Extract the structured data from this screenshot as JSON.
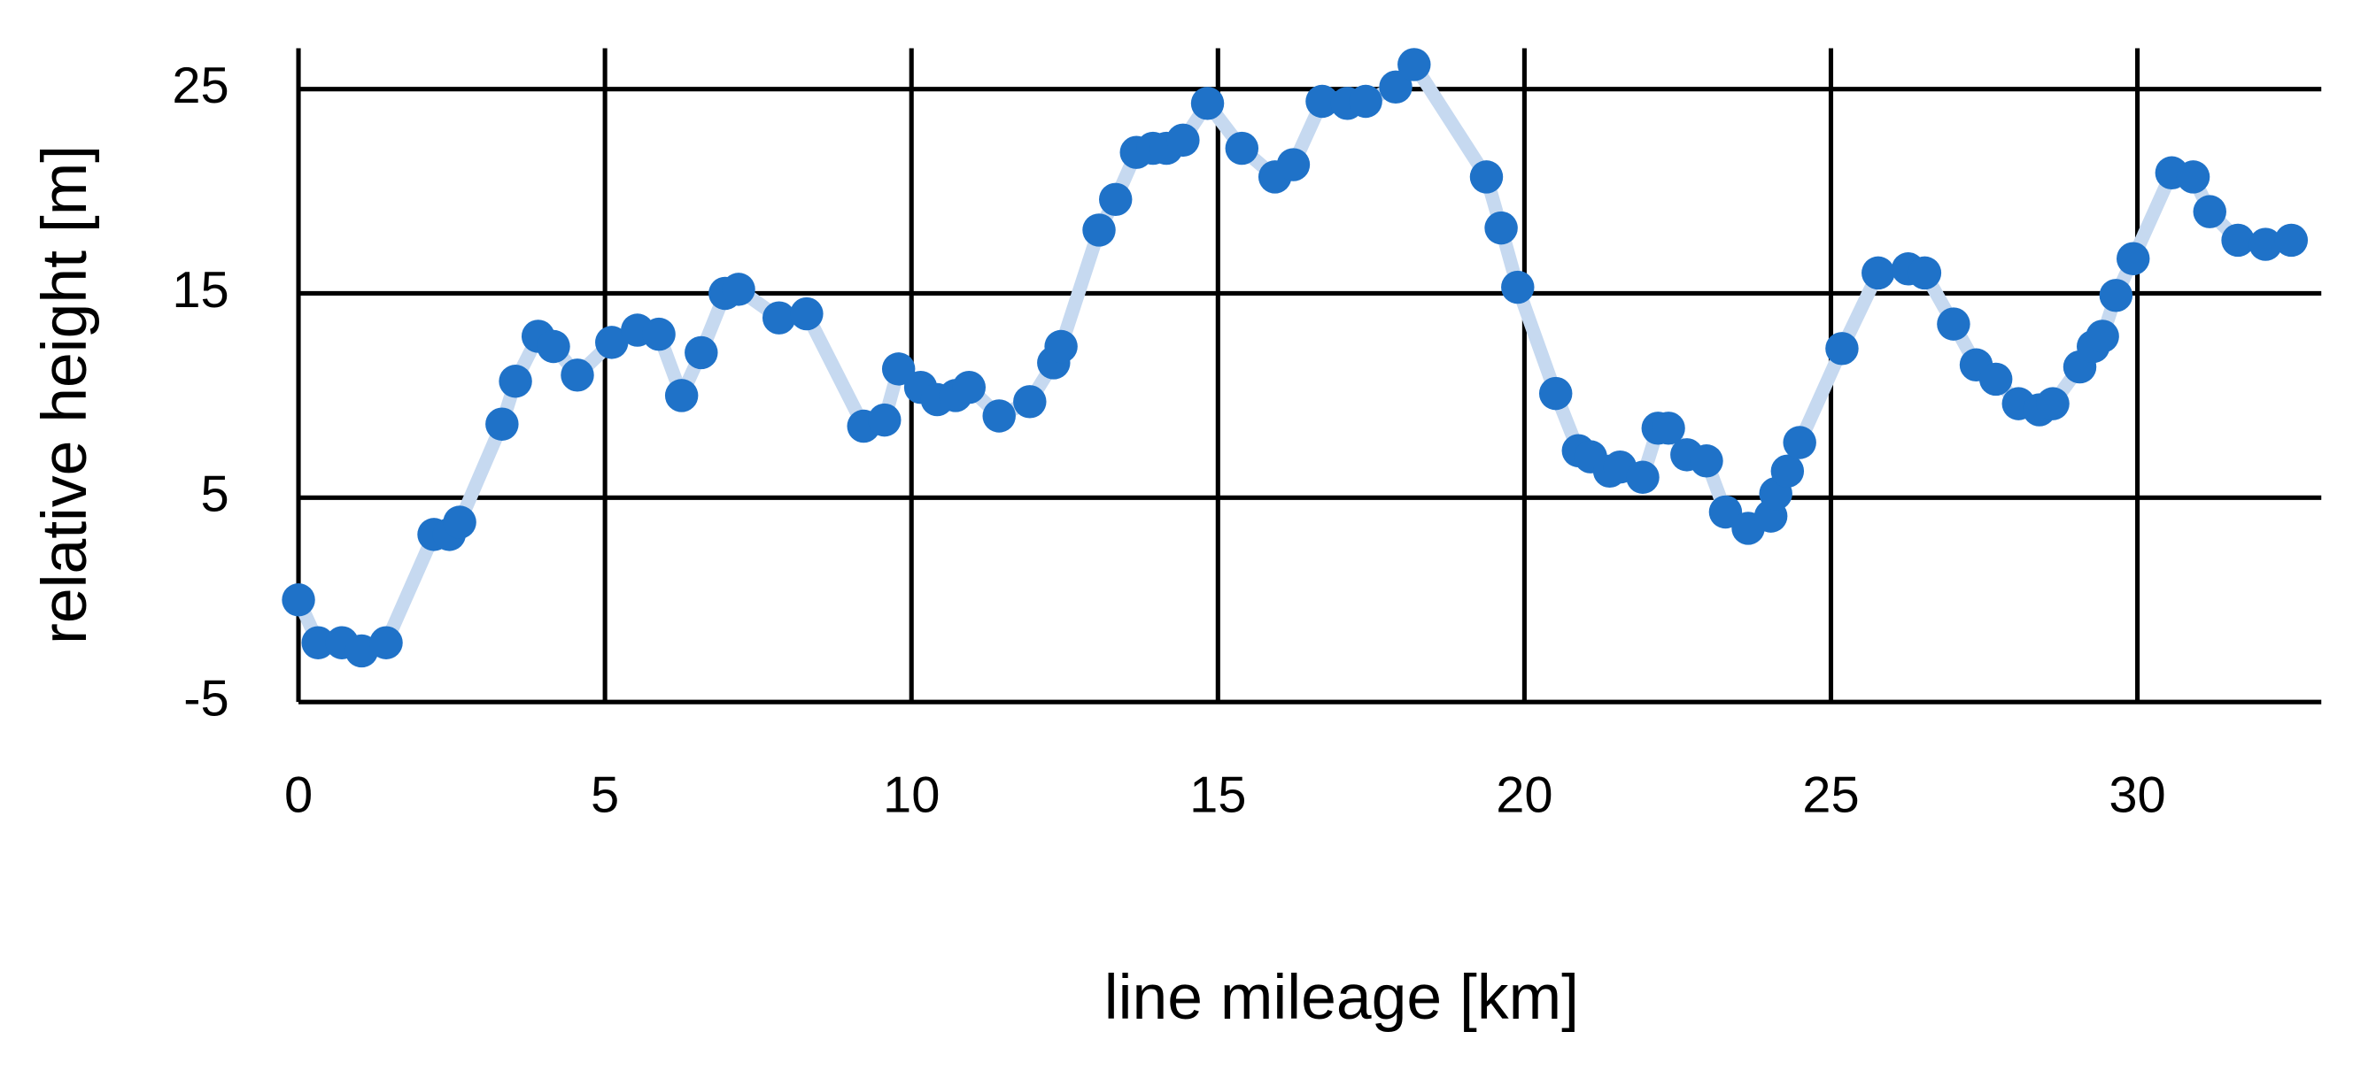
{
  "chart_data": {
    "type": "line",
    "x_label": "line mileage [km]",
    "y_label": "relative height  [m]",
    "x": [
      0,
      0.32,
      0.71,
      1.03,
      1.43,
      2.21,
      2.46,
      2.63,
      3.32,
      3.54,
      3.91,
      4.16,
      4.55,
      5.11,
      5.53,
      5.88,
      6.25,
      6.57,
      6.96,
      7.18,
      7.84,
      8.29,
      9.22,
      9.56,
      9.79,
      10.15,
      10.42,
      10.72,
      10.94,
      11.43,
      11.93,
      12.32,
      12.44,
      13.06,
      13.33,
      13.67,
      13.94,
      14.16,
      14.43,
      14.83,
      15.39,
      15.93,
      16.23,
      16.7,
      17.11,
      17.41,
      17.9,
      18.2,
      19.38,
      19.62,
      19.89,
      20.51,
      20.88,
      21.08,
      21.39,
      21.56,
      21.93,
      22.18,
      22.35,
      22.65,
      22.97,
      23.28,
      23.65,
      24.02,
      24.1,
      24.29,
      24.49,
      25.18,
      25.77,
      26.26,
      26.53,
      27.0,
      27.37,
      27.69,
      28.06,
      28.4,
      28.62,
      29.06,
      29.28,
      29.43,
      29.65,
      29.93,
      30.56,
      30.91,
      31.18,
      31.64,
      32.09,
      32.51
    ],
    "values": [
      0,
      -2.1,
      -2.1,
      -2.5,
      -2.1,
      3.2,
      3.2,
      3.8,
      8.6,
      10.7,
      12.9,
      12.4,
      11.0,
      12.6,
      13.2,
      13.0,
      10.0,
      12.1,
      15.0,
      15.2,
      13.8,
      14.0,
      8.5,
      8.8,
      11.3,
      10.4,
      9.8,
      10.0,
      10.4,
      9.0,
      9.7,
      11.6,
      12.4,
      18.1,
      19.6,
      21.9,
      22.1,
      22.1,
      22.5,
      24.3,
      22.1,
      20.7,
      21.3,
      24.4,
      24.3,
      24.4,
      25.1,
      26.2,
      20.7,
      18.2,
      15.3,
      10.1,
      7.3,
      7.0,
      6.3,
      6.5,
      6.0,
      8.4,
      8.4,
      7.1,
      6.8,
      4.3,
      3.5,
      4.1,
      5.2,
      6.3,
      7.7,
      12.3,
      16.0,
      16.2,
      16.0,
      13.5,
      11.5,
      10.8,
      9.6,
      9.3,
      9.6,
      11.4,
      12.4,
      12.9,
      14.9,
      16.7,
      20.9,
      20.7,
      19.0,
      17.6,
      17.4,
      17.6
    ],
    "color": "#1f72c8",
    "line_color": "#c6d9f0",
    "xlim": [
      0,
      33
    ],
    "ylim": [
      -5,
      27
    ],
    "xticks": [
      0,
      5,
      10,
      15,
      20,
      25,
      30
    ],
    "yticks": [
      -5,
      5,
      15,
      25
    ],
    "grid": true
  }
}
